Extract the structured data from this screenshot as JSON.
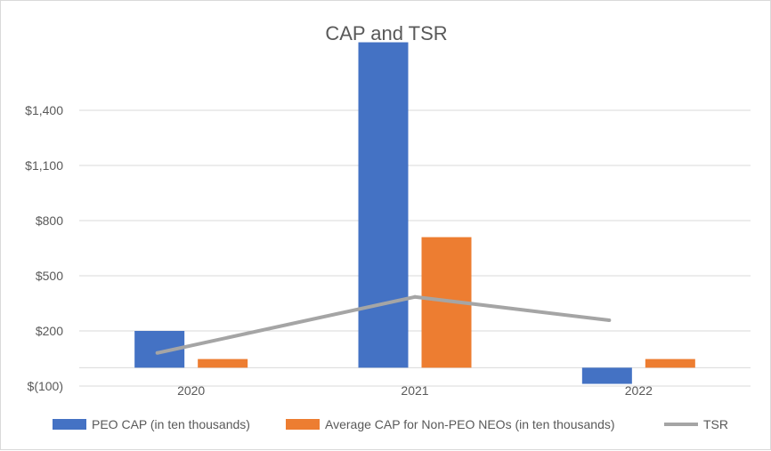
{
  "chart_data": {
    "type": "bar",
    "title": "CAP and TSR",
    "categories": [
      "2020",
      "2021",
      "2022"
    ],
    "series": [
      {
        "name": "PEO CAP (in ten thousands)",
        "kind": "bar",
        "color": "#4472c4",
        "values": [
          200,
          1770,
          -88
        ]
      },
      {
        "name": "Average CAP for Non-PEO NEOs (in ten thousands)",
        "kind": "bar",
        "color": "#ed7d31",
        "values": [
          47,
          710,
          47
        ]
      },
      {
        "name": "TSR",
        "kind": "line",
        "color": "#a5a5a5",
        "values": [
          80,
          385,
          258
        ]
      }
    ],
    "y_ticks": [
      {
        "value": -100,
        "label": "$(100)"
      },
      {
        "value": 200,
        "label": "$200"
      },
      {
        "value": 500,
        "label": "$500"
      },
      {
        "value": 800,
        "label": "$800"
      },
      {
        "value": 1100,
        "label": "$1,100"
      },
      {
        "value": 1400,
        "label": "$1,400"
      }
    ],
    "ylim": [
      -100,
      1700
    ],
    "grid": true,
    "legend": "bottom",
    "xlabel": "",
    "ylabel": ""
  }
}
